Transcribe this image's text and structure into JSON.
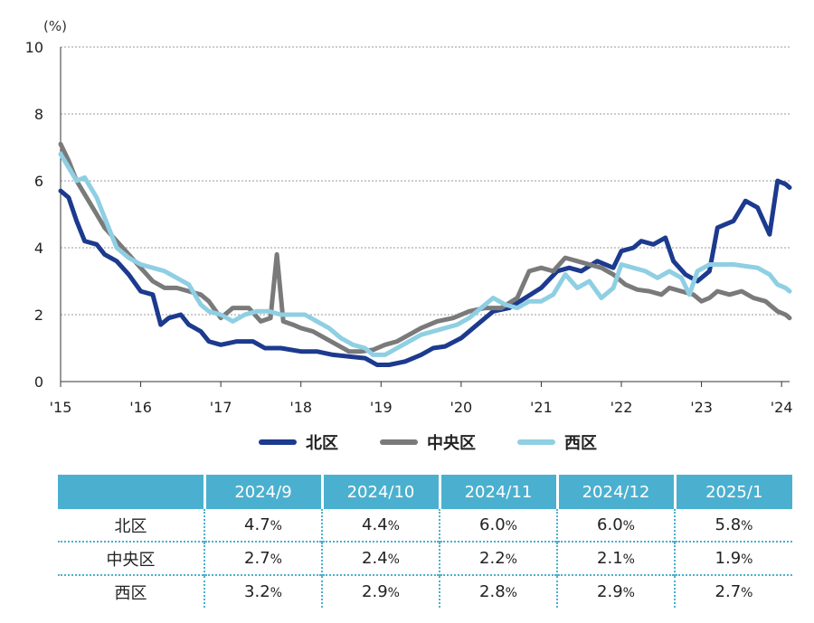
{
  "chart_data": {
    "type": "line",
    "y_unit_label": "(%)",
    "ylim": [
      0,
      10
    ],
    "y_ticks": [
      0,
      2,
      4,
      6,
      8,
      10
    ],
    "x_tick_labels": [
      "'15",
      "'16",
      "'17",
      "'18",
      "'19",
      "'20",
      "'21",
      "'22",
      "'23",
      "'24"
    ],
    "x_range": [
      2015,
      2024.1
    ],
    "series": [
      {
        "name": "北区",
        "color": "#1c3a8e",
        "points": [
          [
            2015.0,
            5.7
          ],
          [
            2015.1,
            5.5
          ],
          [
            2015.2,
            4.8
          ],
          [
            2015.3,
            4.2
          ],
          [
            2015.45,
            4.1
          ],
          [
            2015.55,
            3.8
          ],
          [
            2015.7,
            3.6
          ],
          [
            2015.85,
            3.2
          ],
          [
            2016.0,
            2.7
          ],
          [
            2016.15,
            2.6
          ],
          [
            2016.25,
            1.7
          ],
          [
            2016.35,
            1.9
          ],
          [
            2016.5,
            2.0
          ],
          [
            2016.6,
            1.7
          ],
          [
            2016.75,
            1.5
          ],
          [
            2016.85,
            1.2
          ],
          [
            2017.0,
            1.1
          ],
          [
            2017.2,
            1.2
          ],
          [
            2017.4,
            1.2
          ],
          [
            2017.55,
            1.0
          ],
          [
            2017.75,
            1.0
          ],
          [
            2018.0,
            0.9
          ],
          [
            2018.2,
            0.9
          ],
          [
            2018.4,
            0.8
          ],
          [
            2018.6,
            0.75
          ],
          [
            2018.8,
            0.7
          ],
          [
            2018.95,
            0.5
          ],
          [
            2019.1,
            0.5
          ],
          [
            2019.3,
            0.6
          ],
          [
            2019.5,
            0.8
          ],
          [
            2019.65,
            1.0
          ],
          [
            2019.8,
            1.05
          ],
          [
            2020.0,
            1.3
          ],
          [
            2020.2,
            1.7
          ],
          [
            2020.4,
            2.1
          ],
          [
            2020.6,
            2.2
          ],
          [
            2020.8,
            2.5
          ],
          [
            2021.0,
            2.8
          ],
          [
            2021.2,
            3.3
          ],
          [
            2021.35,
            3.4
          ],
          [
            2021.5,
            3.3
          ],
          [
            2021.7,
            3.6
          ],
          [
            2021.9,
            3.4
          ],
          [
            2022.0,
            3.9
          ],
          [
            2022.15,
            4.0
          ],
          [
            2022.25,
            4.2
          ],
          [
            2022.4,
            4.1
          ],
          [
            2022.55,
            4.3
          ],
          [
            2022.65,
            3.6
          ],
          [
            2022.8,
            3.2
          ],
          [
            2022.95,
            3.0
          ],
          [
            2023.1,
            3.3
          ],
          [
            2023.2,
            4.6
          ],
          [
            2023.3,
            4.7
          ],
          [
            2023.4,
            4.8
          ],
          [
            2023.55,
            5.4
          ],
          [
            2023.7,
            5.2
          ],
          [
            2023.85,
            4.4
          ],
          [
            2023.95,
            6.0
          ],
          [
            2024.05,
            5.9
          ],
          [
            2024.1,
            5.8
          ]
        ]
      },
      {
        "name": "中央区",
        "color": "#7a7a7a",
        "points": [
          [
            2015.0,
            7.1
          ],
          [
            2015.1,
            6.6
          ],
          [
            2015.2,
            6.0
          ],
          [
            2015.3,
            5.6
          ],
          [
            2015.45,
            5.0
          ],
          [
            2015.55,
            4.6
          ],
          [
            2015.7,
            4.2
          ],
          [
            2015.85,
            3.8
          ],
          [
            2016.0,
            3.4
          ],
          [
            2016.15,
            3.0
          ],
          [
            2016.3,
            2.8
          ],
          [
            2016.45,
            2.8
          ],
          [
            2016.6,
            2.7
          ],
          [
            2016.75,
            2.6
          ],
          [
            2016.85,
            2.4
          ],
          [
            2017.0,
            1.9
          ],
          [
            2017.15,
            2.2
          ],
          [
            2017.35,
            2.2
          ],
          [
            2017.5,
            1.8
          ],
          [
            2017.62,
            1.9
          ],
          [
            2017.7,
            3.8
          ],
          [
            2017.78,
            1.8
          ],
          [
            2017.9,
            1.7
          ],
          [
            2018.0,
            1.6
          ],
          [
            2018.15,
            1.5
          ],
          [
            2018.3,
            1.3
          ],
          [
            2018.45,
            1.1
          ],
          [
            2018.6,
            0.9
          ],
          [
            2018.75,
            0.9
          ],
          [
            2018.9,
            0.95
          ],
          [
            2019.05,
            1.1
          ],
          [
            2019.2,
            1.2
          ],
          [
            2019.35,
            1.4
          ],
          [
            2019.5,
            1.6
          ],
          [
            2019.7,
            1.8
          ],
          [
            2019.9,
            1.9
          ],
          [
            2020.1,
            2.1
          ],
          [
            2020.3,
            2.2
          ],
          [
            2020.5,
            2.2
          ],
          [
            2020.7,
            2.5
          ],
          [
            2020.85,
            3.3
          ],
          [
            2021.0,
            3.4
          ],
          [
            2021.15,
            3.3
          ],
          [
            2021.3,
            3.7
          ],
          [
            2021.45,
            3.6
          ],
          [
            2021.6,
            3.5
          ],
          [
            2021.75,
            3.4
          ],
          [
            2021.9,
            3.2
          ],
          [
            2022.05,
            2.9
          ],
          [
            2022.2,
            2.75
          ],
          [
            2022.35,
            2.7
          ],
          [
            2022.5,
            2.6
          ],
          [
            2022.6,
            2.8
          ],
          [
            2022.75,
            2.7
          ],
          [
            2022.9,
            2.6
          ],
          [
            2023.0,
            2.4
          ],
          [
            2023.1,
            2.5
          ],
          [
            2023.2,
            2.7
          ],
          [
            2023.35,
            2.6
          ],
          [
            2023.5,
            2.7
          ],
          [
            2023.65,
            2.5
          ],
          [
            2023.8,
            2.4
          ],
          [
            2023.95,
            2.1
          ],
          [
            2024.05,
            2.0
          ],
          [
            2024.1,
            1.9
          ]
        ]
      },
      {
        "name": "西区",
        "color": "#8fcfe3",
        "points": [
          [
            2015.0,
            6.8
          ],
          [
            2015.1,
            6.4
          ],
          [
            2015.2,
            6.0
          ],
          [
            2015.3,
            6.1
          ],
          [
            2015.45,
            5.5
          ],
          [
            2015.55,
            4.9
          ],
          [
            2015.7,
            4.0
          ],
          [
            2015.85,
            3.7
          ],
          [
            2016.0,
            3.5
          ],
          [
            2016.15,
            3.4
          ],
          [
            2016.3,
            3.3
          ],
          [
            2016.45,
            3.1
          ],
          [
            2016.6,
            2.9
          ],
          [
            2016.75,
            2.3
          ],
          [
            2016.85,
            2.1
          ],
          [
            2017.0,
            2.0
          ],
          [
            2017.15,
            1.8
          ],
          [
            2017.3,
            2.0
          ],
          [
            2017.45,
            2.1
          ],
          [
            2017.6,
            2.1
          ],
          [
            2017.75,
            2.0
          ],
          [
            2017.9,
            2.0
          ],
          [
            2018.05,
            2.0
          ],
          [
            2018.2,
            1.8
          ],
          [
            2018.35,
            1.6
          ],
          [
            2018.5,
            1.3
          ],
          [
            2018.65,
            1.1
          ],
          [
            2018.8,
            1.0
          ],
          [
            2018.9,
            0.8
          ],
          [
            2019.05,
            0.8
          ],
          [
            2019.2,
            1.0
          ],
          [
            2019.35,
            1.2
          ],
          [
            2019.5,
            1.4
          ],
          [
            2019.65,
            1.5
          ],
          [
            2019.8,
            1.6
          ],
          [
            2019.95,
            1.7
          ],
          [
            2020.1,
            1.9
          ],
          [
            2020.25,
            2.2
          ],
          [
            2020.4,
            2.5
          ],
          [
            2020.55,
            2.3
          ],
          [
            2020.7,
            2.2
          ],
          [
            2020.85,
            2.4
          ],
          [
            2021.0,
            2.4
          ],
          [
            2021.15,
            2.6
          ],
          [
            2021.3,
            3.2
          ],
          [
            2021.45,
            2.8
          ],
          [
            2021.6,
            3.0
          ],
          [
            2021.75,
            2.5
          ],
          [
            2021.9,
            2.8
          ],
          [
            2022.0,
            3.5
          ],
          [
            2022.15,
            3.4
          ],
          [
            2022.3,
            3.3
          ],
          [
            2022.45,
            3.1
          ],
          [
            2022.6,
            3.3
          ],
          [
            2022.75,
            3.1
          ],
          [
            2022.85,
            2.6
          ],
          [
            2022.95,
            3.3
          ],
          [
            2023.1,
            3.5
          ],
          [
            2023.25,
            3.5
          ],
          [
            2023.4,
            3.5
          ],
          [
            2023.55,
            3.45
          ],
          [
            2023.7,
            3.4
          ],
          [
            2023.85,
            3.2
          ],
          [
            2023.95,
            2.9
          ],
          [
            2024.05,
            2.8
          ],
          [
            2024.1,
            2.7
          ]
        ]
      }
    ]
  },
  "table": {
    "headers": [
      "",
      "2024/9",
      "2024/10",
      "2024/11",
      "2024/12",
      "2025/1"
    ],
    "unit": "%",
    "rows": [
      {
        "label": "北区",
        "values": [
          "4.7",
          "4.4",
          "6.0",
          "6.0",
          "5.8"
        ]
      },
      {
        "label": "中央区",
        "values": [
          "2.7",
          "2.4",
          "2.2",
          "2.1",
          "1.9"
        ]
      },
      {
        "label": "西区",
        "values": [
          "3.2",
          "2.9",
          "2.8",
          "2.9",
          "2.7"
        ]
      }
    ]
  }
}
